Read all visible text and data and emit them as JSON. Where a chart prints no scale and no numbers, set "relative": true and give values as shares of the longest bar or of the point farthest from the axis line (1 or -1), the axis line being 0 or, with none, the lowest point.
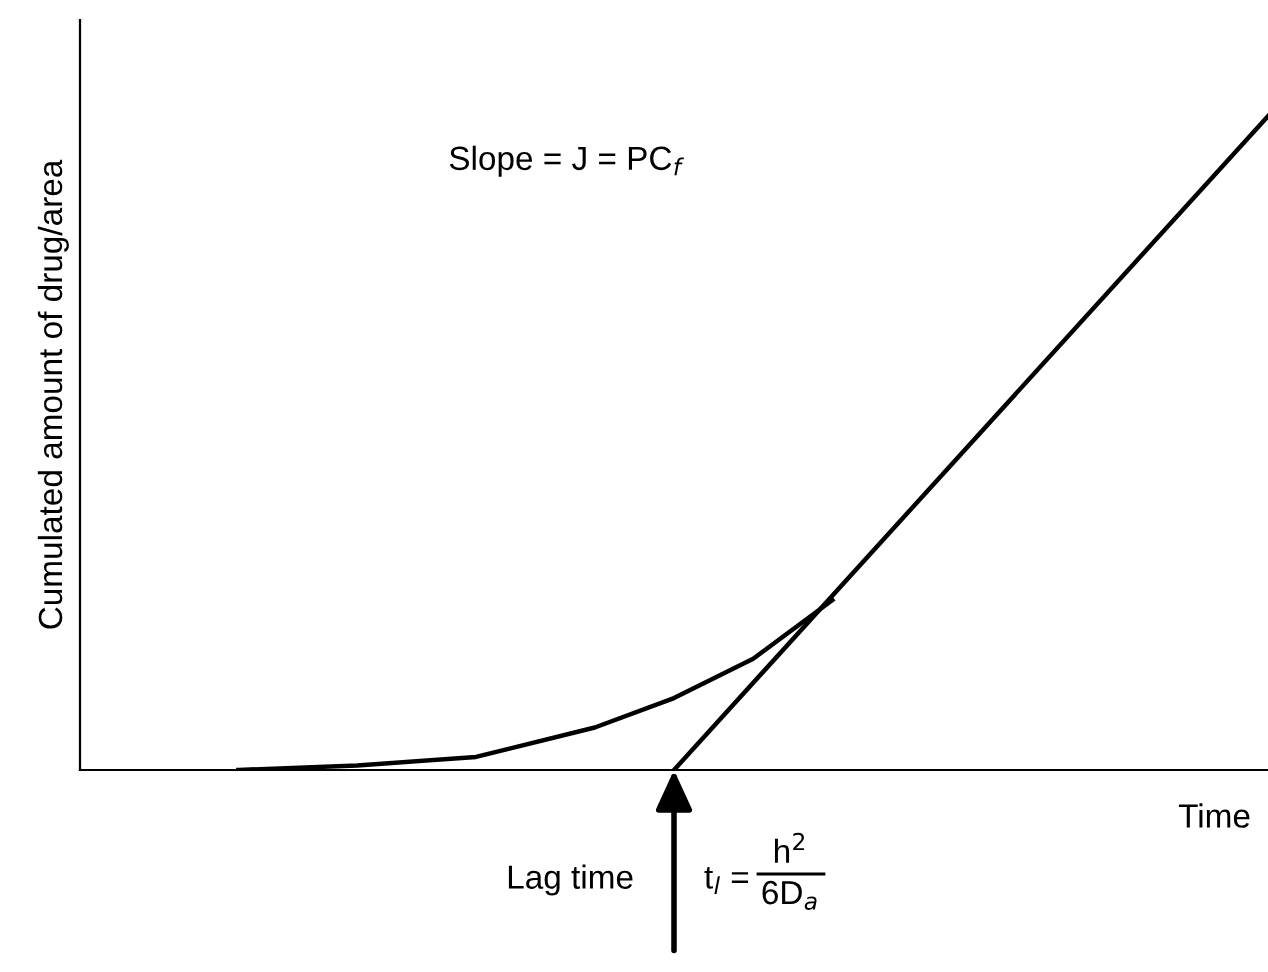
{
  "chart_data": {
    "type": "line",
    "relative": true,
    "legend": false,
    "marker": "none",
    "line_style": "solid",
    "xlabel": "Time",
    "ylabel": "Cumulated amount of drug/area",
    "categories": [
      null,
      null,
      null,
      null,
      null,
      null,
      null,
      null,
      null,
      null,
      null,
      null,
      null,
      null,
      null,
      null,
      null,
      null,
      null,
      null,
      null,
      null,
      null,
      null,
      null,
      null,
      null,
      null,
      null,
      null,
      null
    ],
    "series": [
      {
        "color": "#000000",
        "values": [
          null,
          null,
          null,
          null,
          0,
          null,
          null,
          0.007,
          null,
          null,
          0.02,
          null,
          null,
          0.065,
          null,
          0.11,
          null,
          0.17,
          null,
          0.26,
          null,
          null,
          null,
          null,
          null,
          null,
          null,
          null,
          null,
          null,
          null
        ]
      },
      {
        "color": "#000000",
        "values": [
          null,
          null,
          null,
          null,
          null,
          null,
          null,
          null,
          null,
          null,
          null,
          null,
          null,
          null,
          null,
          0,
          null,
          null,
          null,
          null,
          null,
          null,
          null,
          null,
          null,
          null,
          null,
          null,
          null,
          null,
          1
        ]
      }
    ],
    "annotations": [
      "Slope = J = PC$_{f}$",
      "Lag time",
      "t$_{l}$ =",
      "h$^{2}$",
      "6D$_{a}$"
    ]
  }
}
